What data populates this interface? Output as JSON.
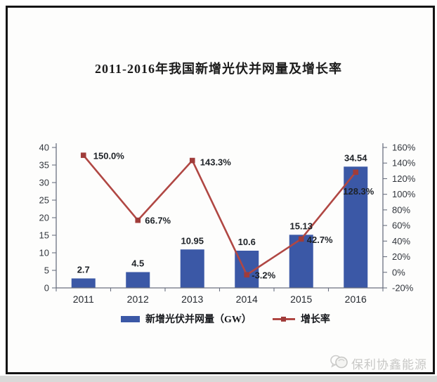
{
  "chart_data": {
    "type": "bar",
    "subtype": "bar-line-combo",
    "title": "2011-2016年我国新增光伏并网量及增长率",
    "categories": [
      "2011",
      "2012",
      "2013",
      "2014",
      "2015",
      "2016"
    ],
    "series": [
      {
        "name": "新增光伏并网量（GW）",
        "type": "bar",
        "axis": "left",
        "values": [
          2.7,
          4.5,
          10.95,
          10.6,
          15.13,
          34.54
        ],
        "labels": [
          "2.7",
          "4.5",
          "10.95",
          "10.6",
          "15.13",
          "34.54"
        ]
      },
      {
        "name": "增长率",
        "type": "line",
        "axis": "right",
        "values": [
          150.0,
          66.7,
          143.3,
          -3.2,
          42.7,
          128.3
        ],
        "labels": [
          "150.0%",
          "66.7%",
          "143.3%",
          "-3.2%",
          "42.7%",
          "128.3%"
        ],
        "label_offsets": [
          [
            14,
            5.5
          ],
          [
            10,
            5
          ],
          [
            11,
            7
          ],
          [
            7,
            5
          ],
          [
            8,
            5.5
          ],
          [
            -18,
            32
          ]
        ]
      }
    ],
    "left_axis": {
      "min": 0,
      "max": 40,
      "step": 5,
      "ticks": [
        "0",
        "5",
        "10",
        "15",
        "20",
        "25",
        "30",
        "35",
        "40"
      ]
    },
    "right_axis": {
      "min": -20,
      "max": 160,
      "step": 20,
      "ticks": [
        "-20%",
        "0%",
        "20%",
        "40%",
        "60%",
        "80%",
        "100%",
        "120%",
        "140%",
        "160%"
      ]
    },
    "grid": false,
    "legend_position": "bottom"
  },
  "colors": {
    "bar": "#3b58a6",
    "line": "#b04743",
    "marker": "#a03c3a",
    "axis": "#6b7180",
    "frame": "#141414",
    "watermark": "#c7c7c5"
  },
  "watermark": {
    "icon": "gcl-logo",
    "text": "保利协鑫能源"
  }
}
